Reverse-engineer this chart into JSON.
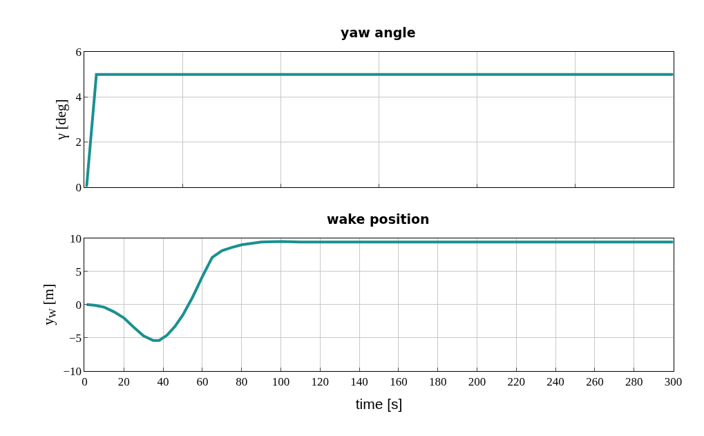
{
  "chart_data": [
    {
      "type": "line",
      "title": "yaw angle",
      "ylabel": "γ [deg]",
      "x": [
        1,
        6,
        300
      ],
      "series": [
        {
          "color": "#1a9090",
          "values": [
            0,
            5,
            5
          ]
        }
      ],
      "xlim": [
        0,
        300
      ],
      "xticks": [
        {
          "value": 0,
          "label": null
        },
        {
          "value": 50,
          "label": null
        },
        {
          "value": 100,
          "label": null
        },
        {
          "value": 150,
          "label": null
        },
        {
          "value": 200,
          "label": null
        },
        {
          "value": 250,
          "label": null
        },
        {
          "value": 300,
          "label": null
        }
      ],
      "ylim": [
        0,
        6
      ],
      "yticks": [
        0,
        2,
        4,
        6
      ],
      "tick_labels": "y",
      "grid": true,
      "line_style": "solid",
      "marker": "none"
    },
    {
      "type": "line",
      "title": "wake position",
      "xlabel": "time [s]",
      "ylabel": "y$_{W}$ [m]",
      "x": [
        1,
        5,
        10,
        15,
        20,
        25,
        30,
        35,
        38,
        42,
        46,
        50,
        55,
        60,
        65,
        70,
        75,
        80,
        90,
        100,
        110,
        140,
        300
      ],
      "series": [
        {
          "color": "#1a9090",
          "values": [
            0,
            -0.1,
            -0.4,
            -1.1,
            -2.0,
            -3.4,
            -4.7,
            -5.4,
            -5.4,
            -4.6,
            -3.3,
            -1.6,
            1.1,
            4.2,
            7.1,
            8.1,
            8.6,
            9.0,
            9.4,
            9.5,
            9.4,
            9.4,
            9.4
          ]
        }
      ],
      "xlim": [
        0,
        300
      ],
      "xticks": [
        0,
        20,
        40,
        60,
        80,
        100,
        120,
        140,
        160,
        180,
        200,
        220,
        240,
        260,
        280,
        300
      ],
      "ylim": [
        -10,
        10
      ],
      "yticks": [
        {
          "value": -10,
          "label": "−10"
        },
        {
          "value": -5,
          "label": "−5"
        },
        0,
        5,
        10
      ],
      "grid": true,
      "line_style": "solid",
      "marker": "none"
    }
  ]
}
